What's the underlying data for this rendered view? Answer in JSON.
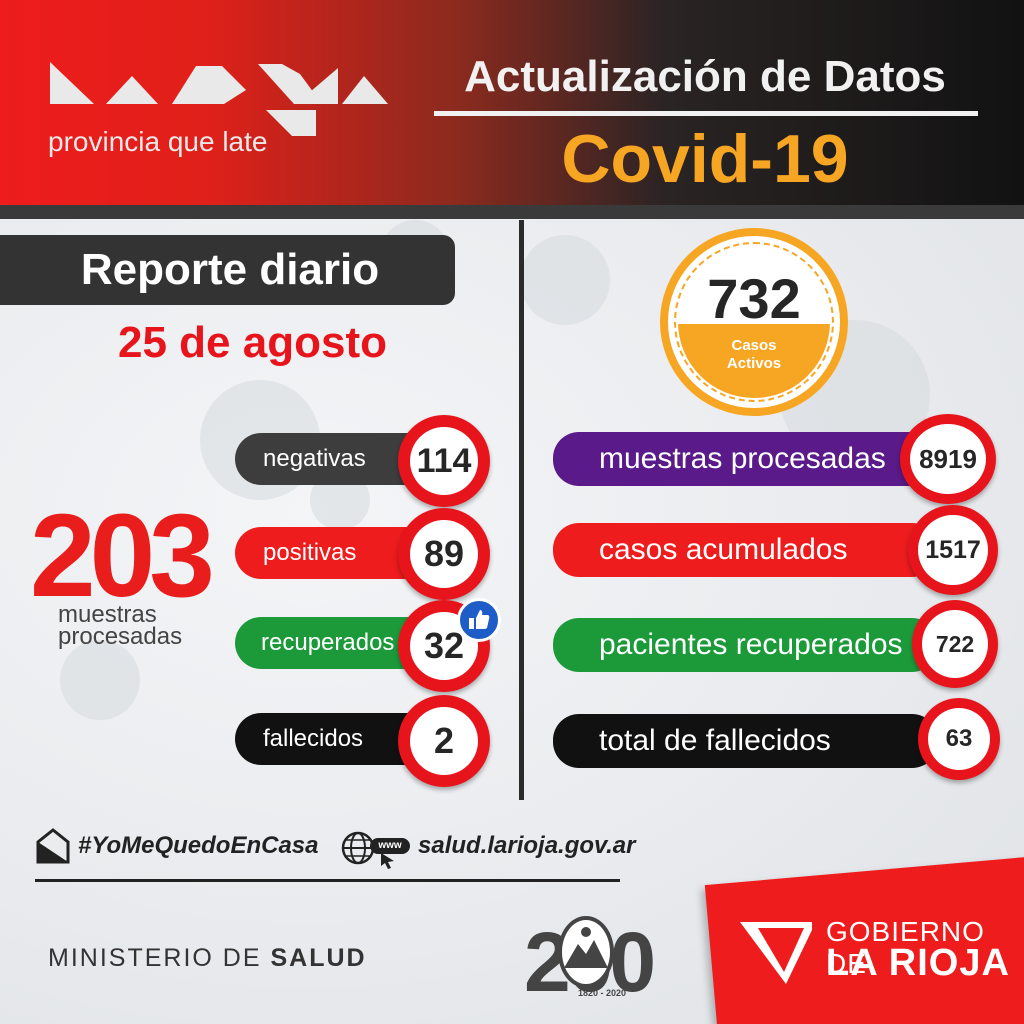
{
  "header": {
    "logo_tagline": "provincia que late",
    "title": "Actualización de Datos",
    "subtitle": "Covid-19"
  },
  "report": {
    "title": "Reporte diario",
    "date": "25 de agosto"
  },
  "daily": {
    "total": "203",
    "total_label_line1": "muestras",
    "total_label_line2": "procesadas",
    "items": [
      {
        "label": "negativas",
        "value": "114",
        "color": "#3d3d3d"
      },
      {
        "label": "positivas",
        "value": "89",
        "color": "#ee1c1c"
      },
      {
        "label": "recuperados",
        "value": "32",
        "color": "#1c9a3a"
      },
      {
        "label": "fallecidos",
        "value": "2",
        "color": "#111111"
      }
    ]
  },
  "active": {
    "value": "732",
    "label_line1": "Casos",
    "label_line2": "Activos",
    "color": "#f6a623"
  },
  "totals": {
    "items": [
      {
        "label": "muestras procesadas",
        "value": "8919",
        "color": "#5a1a8a"
      },
      {
        "label": "casos acumulados",
        "value": "1517",
        "color": "#ee1c1c"
      },
      {
        "label": "pacientes recuperados",
        "value": "722",
        "color": "#1c9a3a"
      },
      {
        "label": "total de fallecidos",
        "value": "63",
        "color": "#111111"
      }
    ]
  },
  "footer": {
    "hashtag": "#YoMeQuedoEnCasa",
    "www_badge": "www",
    "website": "salud.larioja.gov.ar",
    "ministry_prefix": "MINISTERIO DE ",
    "ministry_bold": "SALUD",
    "gov_line1": "GOBIERNO DE",
    "gov_line2": "LA RIOJA",
    "seal_number": "200",
    "seal_years": "1820 - 2020"
  },
  "colors": {
    "accent_red": "#ee1c1c",
    "accent_orange": "#f6a623",
    "thumbs_blue": "#1e5cc8"
  }
}
